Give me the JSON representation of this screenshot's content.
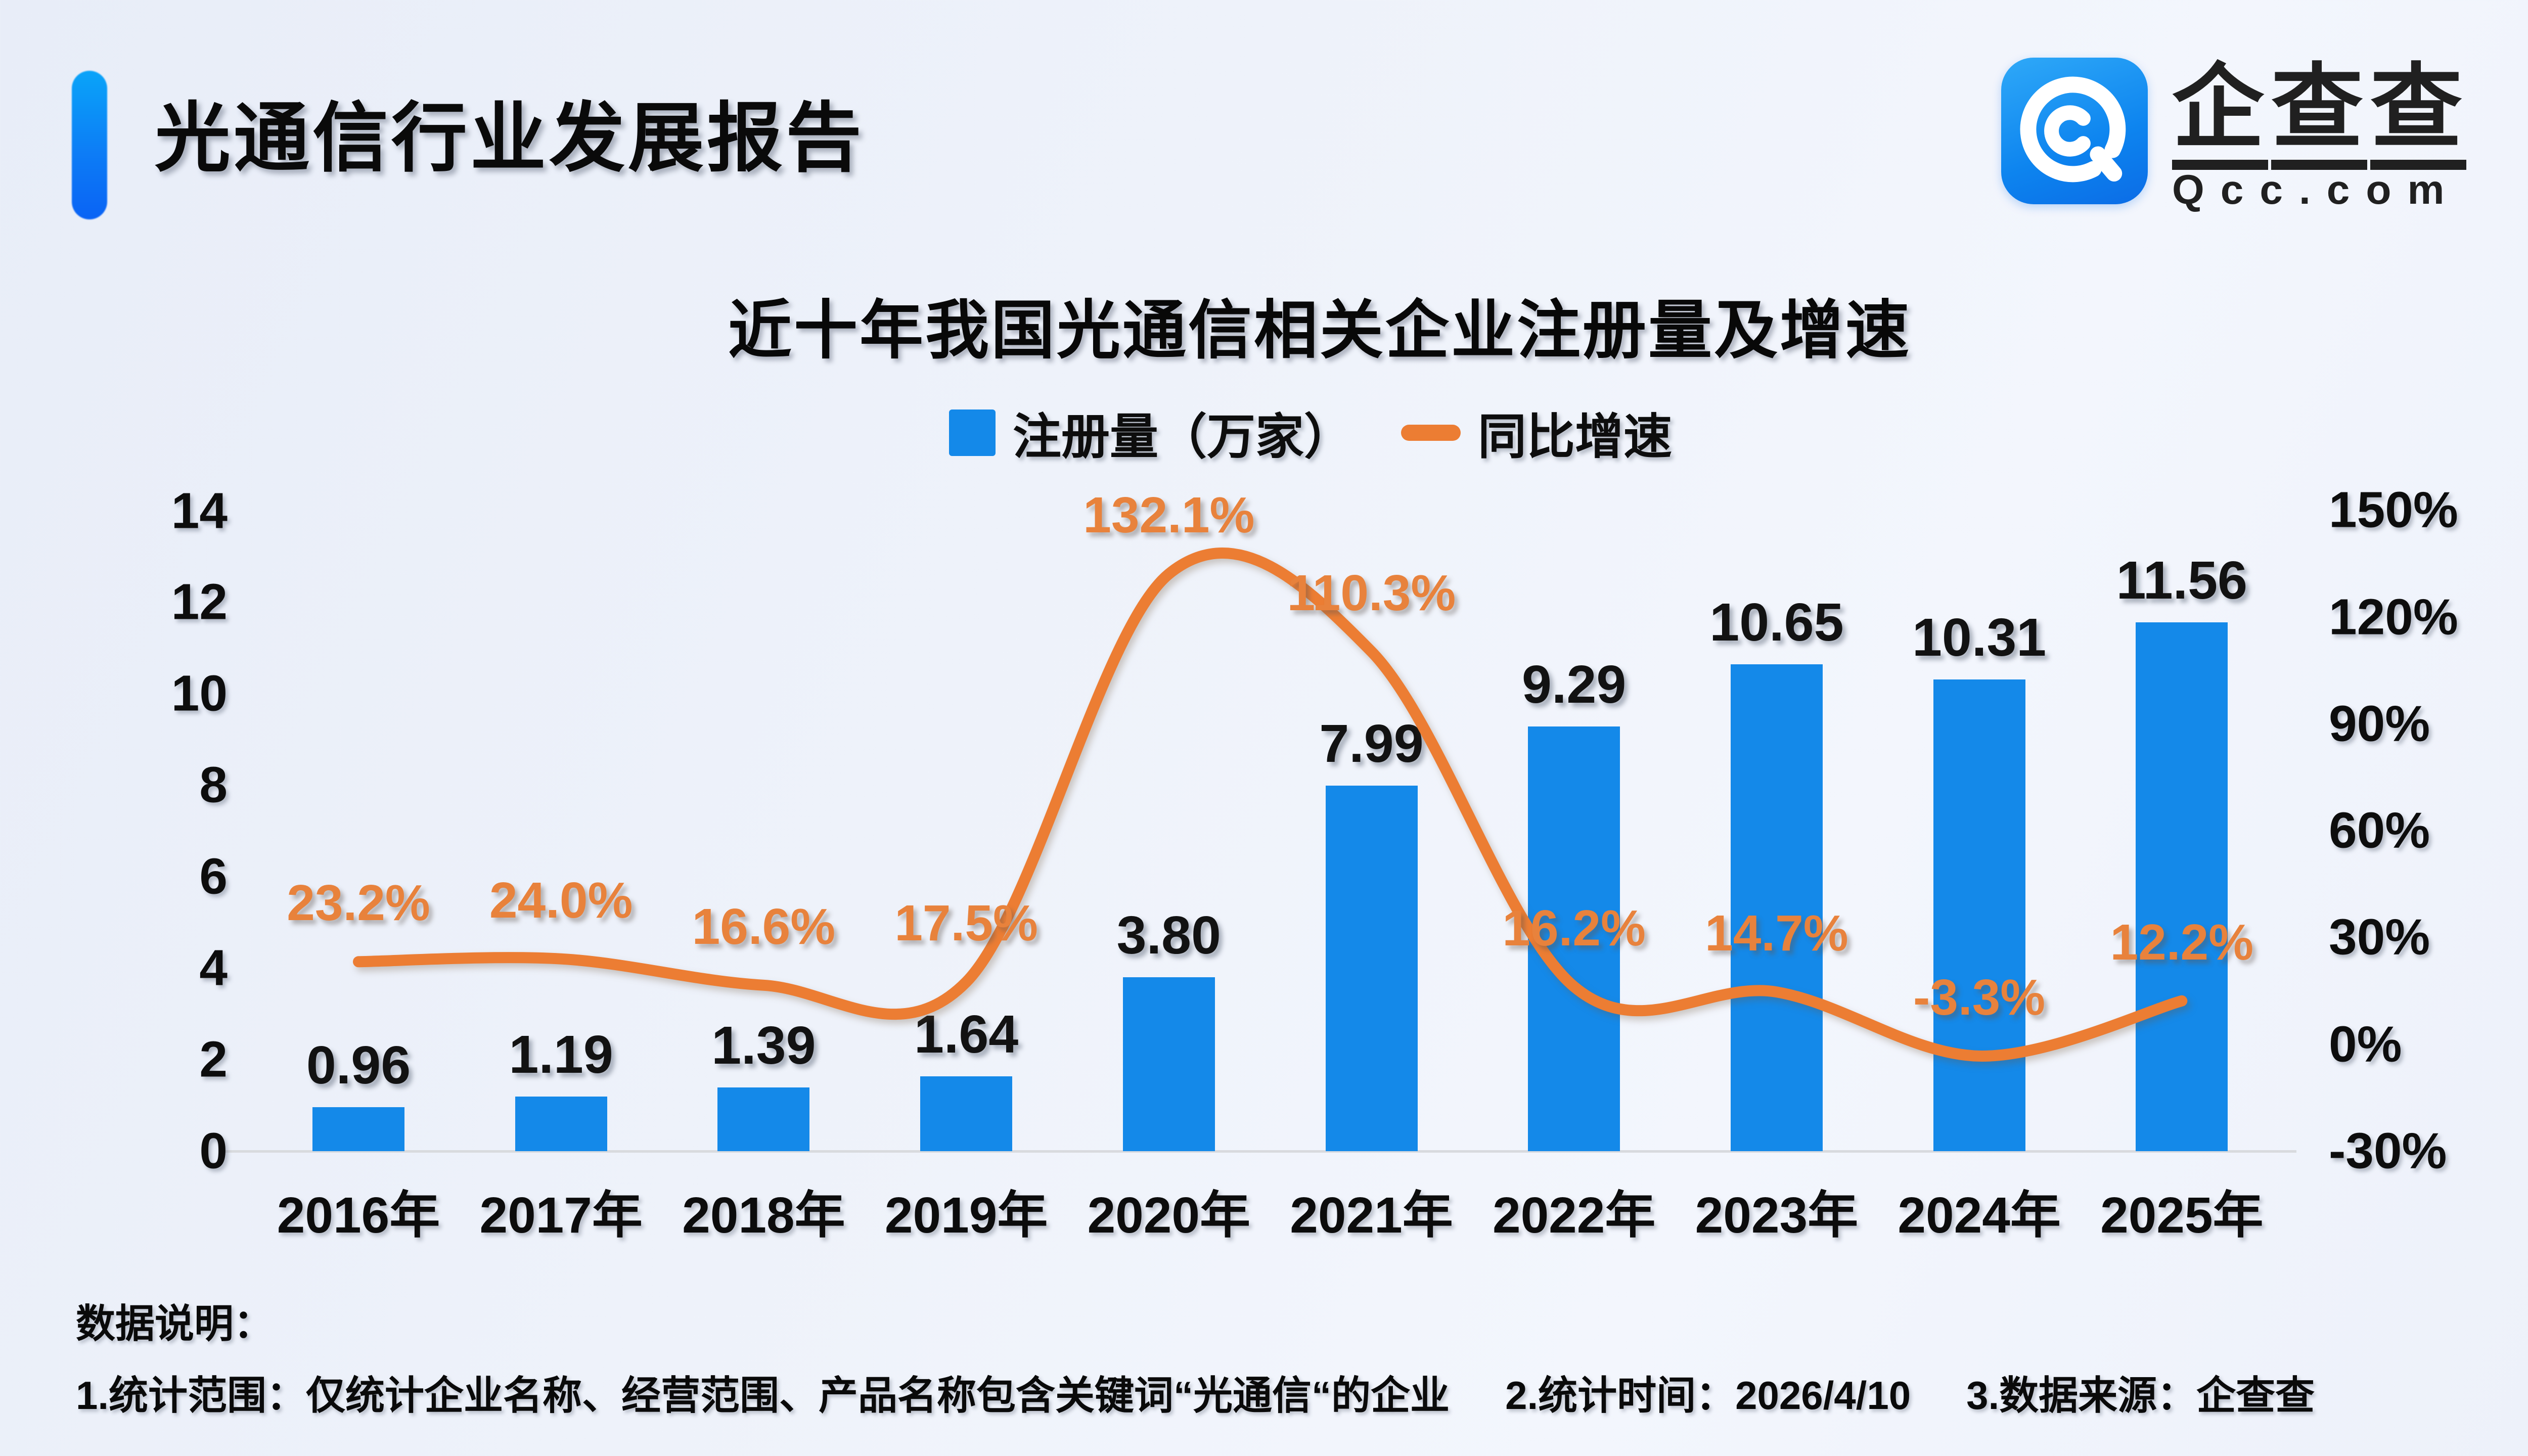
{
  "header": {
    "title": "光通信行业发展报告"
  },
  "logo": {
    "icon": "qcc-logo",
    "name_chars": [
      "企",
      "查",
      "查"
    ],
    "name": "企查查",
    "domain": "Qcc.com"
  },
  "chart": {
    "title": "近十年我国光通信相关企业注册量及增速"
  },
  "chart_data": {
    "type": "bar+line",
    "title": "近十年我国光通信相关企业注册量及增速",
    "categories": [
      "2016年",
      "2017年",
      "2018年",
      "2019年",
      "2020年",
      "2021年",
      "2022年",
      "2023年",
      "2024年",
      "2025年"
    ],
    "series": [
      {
        "name": "注册量（万家）",
        "type": "bar",
        "axis": "left",
        "color": "#1489e9",
        "values": [
          0.96,
          1.19,
          1.39,
          1.64,
          3.8,
          7.99,
          9.29,
          10.65,
          10.31,
          11.56
        ],
        "labels": [
          "0.96",
          "1.19",
          "1.39",
          "1.64",
          "3.80",
          "7.99",
          "9.29",
          "10.65",
          "10.31",
          "11.56"
        ]
      },
      {
        "name": "同比增速",
        "type": "line",
        "axis": "right",
        "color": "#ec7d33",
        "values": [
          23.2,
          24.0,
          16.6,
          17.5,
          132.1,
          110.3,
          16.2,
          14.7,
          -3.3,
          12.2
        ],
        "labels": [
          "23.2%",
          "24.0%",
          "16.6%",
          "17.5%",
          "132.1%",
          "110.3%",
          "16.2%",
          "14.7%",
          "-3.3%",
          "12.2%"
        ]
      }
    ],
    "left_axis": {
      "ticks": [
        0,
        2,
        4,
        6,
        8,
        10,
        12,
        14
      ],
      "range": [
        0,
        14
      ]
    },
    "right_axis": {
      "ticks": [
        150,
        120,
        90,
        60,
        30,
        0,
        -30
      ],
      "tick_labels": [
        "150%",
        "120%",
        "90%",
        "60%",
        "30%",
        "0%",
        "-30%"
      ],
      "range": [
        -30,
        150
      ]
    },
    "grid": false,
    "legend_position": "top"
  },
  "footer": {
    "heading": "数据说明：",
    "notes": [
      "1.统计范围：仅统计企业名称、经营范围、产品名称包含关键词“光通信“的企业",
      "2.统计时间：2026/4/10",
      "3.数据来源：企查查"
    ]
  }
}
